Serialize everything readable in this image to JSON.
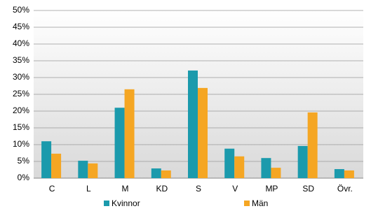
{
  "chart_data": {
    "type": "bar",
    "categories": [
      "C",
      "L",
      "M",
      "KD",
      "S",
      "V",
      "MP",
      "SD",
      "Övr."
    ],
    "series": [
      {
        "name": "Kvinnor",
        "color": "#1b9aac",
        "values": [
          11.0,
          5.2,
          21.0,
          2.9,
          32.1,
          8.8,
          6.0,
          9.6,
          2.7
        ]
      },
      {
        "name": "Män",
        "color": "#f5a623",
        "values": [
          7.3,
          4.4,
          26.5,
          2.3,
          26.9,
          6.5,
          3.1,
          19.6,
          2.3
        ]
      }
    ],
    "ylim": [
      0,
      50
    ],
    "yticks": [
      {
        "value": 0,
        "label": "0%"
      },
      {
        "value": 5,
        "label": "5%"
      },
      {
        "value": 10,
        "label": "10%"
      },
      {
        "value": 15,
        "label": "15%"
      },
      {
        "value": 20,
        "label": "20%"
      },
      {
        "value": 25,
        "label": "25%"
      },
      {
        "value": 30,
        "label": "30%"
      },
      {
        "value": 35,
        "label": "35%"
      },
      {
        "value": 40,
        "label": "40%"
      },
      {
        "value": 45,
        "label": "45%"
      },
      {
        "value": 50,
        "label": "50%"
      }
    ],
    "grid": true,
    "legend": "bottom"
  }
}
